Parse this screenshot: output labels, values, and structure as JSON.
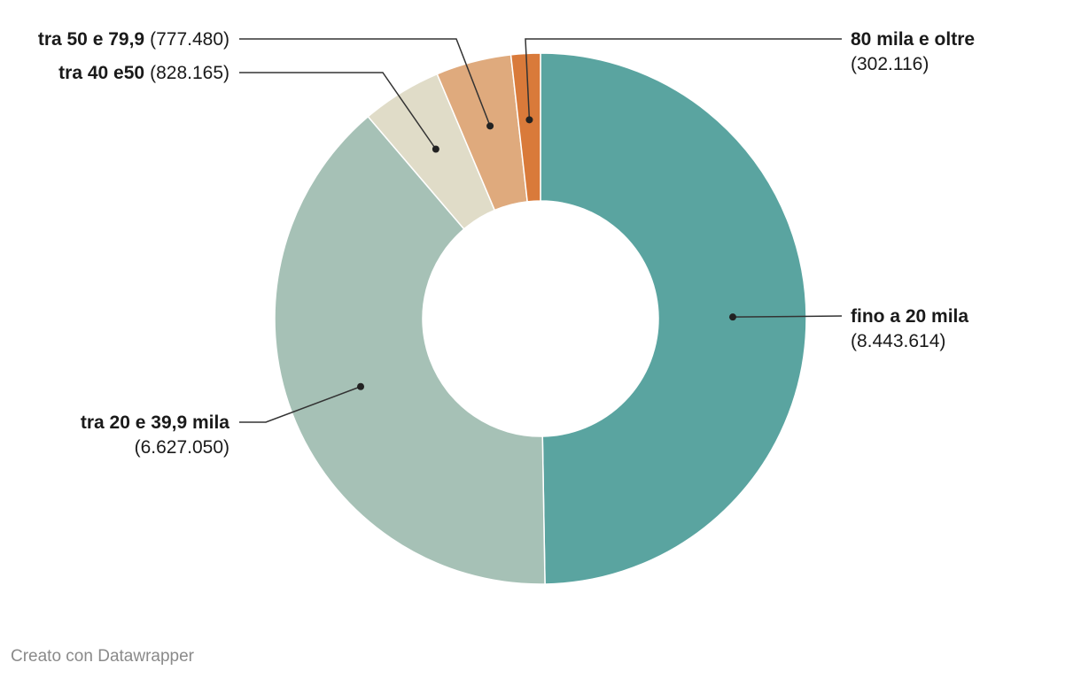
{
  "chart_data": {
    "type": "pie",
    "style": "donut",
    "slices": [
      {
        "label": "fino a 20 mila",
        "value_text": "(8.443.614)",
        "value": 8443614,
        "color": "#5aa4a0"
      },
      {
        "label": "tra 20 e 39,9 mila",
        "value_text": "(6.627.050)",
        "value": 6627050,
        "color": "#a6c1b6"
      },
      {
        "label": "tra 40 e50",
        "value_text": "(828.165)",
        "value": 828165,
        "color": "#e0dcc8"
      },
      {
        "label": "tra 50 e 79,9",
        "value_text": "(777.480)",
        "value": 777480,
        "color": "#dfaa7d"
      },
      {
        "label": "80 mila e oltre",
        "value_text": "(302.116)",
        "value": 302116,
        "color": "#d97a3a"
      }
    ]
  },
  "footer": {
    "credit": "Creato con Datawrapper"
  }
}
